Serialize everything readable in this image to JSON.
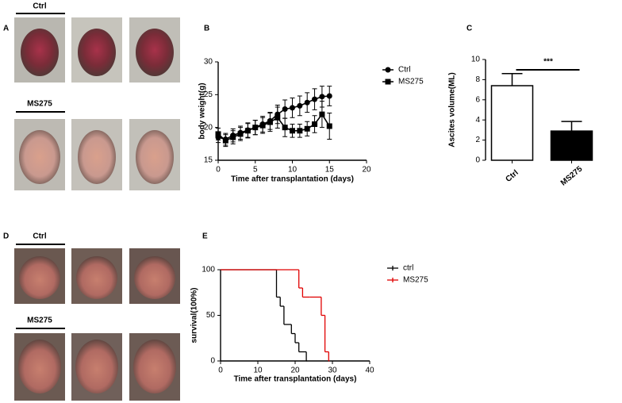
{
  "figure": {
    "panel_a": {
      "label": "A",
      "groups": [
        "Ctrl",
        "MS275"
      ]
    },
    "panel_d": {
      "label": "D",
      "groups": [
        "Ctrl",
        "MS275"
      ]
    }
  },
  "chart_data": [
    {
      "type": "line",
      "label": "B",
      "ylabel": "body weight(g)",
      "xlabel": "Time after transplantation (days)",
      "xlim": [
        0,
        20
      ],
      "xticks": [
        0,
        5,
        10,
        15,
        20
      ],
      "ylim": [
        15,
        30
      ],
      "yticks": [
        15,
        20,
        25,
        30
      ],
      "x": [
        0,
        1,
        2,
        3,
        4,
        5,
        6,
        7,
        8,
        9,
        10,
        11,
        12,
        13,
        14,
        15
      ],
      "series": [
        {
          "name": "Ctrl",
          "color": "#000000",
          "marker": "circle",
          "values": [
            18.5,
            18.2,
            18.8,
            19.2,
            19.6,
            20.0,
            20.5,
            21.0,
            22.0,
            22.8,
            23.0,
            23.3,
            23.8,
            24.3,
            24.7,
            24.8
          ],
          "errors": [
            0.8,
            0.9,
            1.0,
            1.0,
            1.1,
            1.1,
            1.2,
            1.3,
            1.4,
            1.4,
            1.5,
            1.5,
            1.5,
            1.6,
            1.6,
            1.5
          ]
        },
        {
          "name": "MS275",
          "color": "#000000",
          "marker": "square",
          "values": [
            19.0,
            18.0,
            18.5,
            19.0,
            19.5,
            20.0,
            20.3,
            20.8,
            21.5,
            20.0,
            19.5,
            19.5,
            19.8,
            20.5,
            22.0,
            20.2
          ],
          "errors": [
            0.9,
            0.9,
            1.0,
            1.0,
            1.1,
            1.1,
            1.2,
            1.4,
            1.6,
            1.4,
            1.0,
            1.0,
            1.1,
            1.3,
            2.0,
            2.0
          ]
        }
      ]
    },
    {
      "type": "bar",
      "label": "C",
      "ylabel": "Ascites volume(ML)",
      "ylim": [
        0,
        10
      ],
      "yticks": [
        0,
        2,
        4,
        6,
        8,
        10
      ],
      "categories": [
        "Ctrl",
        "MS275"
      ],
      "values": [
        7.4,
        2.9
      ],
      "errors": [
        1.2,
        0.95
      ],
      "colors": [
        "#ffffff",
        "#000000"
      ],
      "annotation": "***"
    },
    {
      "type": "step",
      "label": "E",
      "ylabel": "survival(100%)",
      "xlabel": "Time after transplantation (days)",
      "xlim": [
        0,
        40
      ],
      "xticks": [
        0,
        10,
        20,
        30,
        40
      ],
      "ylim": [
        0,
        100
      ],
      "yticks": [
        0,
        50,
        100
      ],
      "series": [
        {
          "name": "ctrl",
          "color": "#000000",
          "x": [
            0,
            15,
            16,
            17,
            19,
            20,
            21,
            23
          ],
          "values": [
            100,
            70,
            60,
            40,
            30,
            20,
            10,
            0
          ]
        },
        {
          "name": "MS275",
          "color": "#e00000",
          "x": [
            0,
            21,
            22,
            24,
            27,
            28,
            29
          ],
          "values": [
            100,
            80,
            70,
            70,
            50,
            10,
            0
          ]
        }
      ]
    }
  ]
}
